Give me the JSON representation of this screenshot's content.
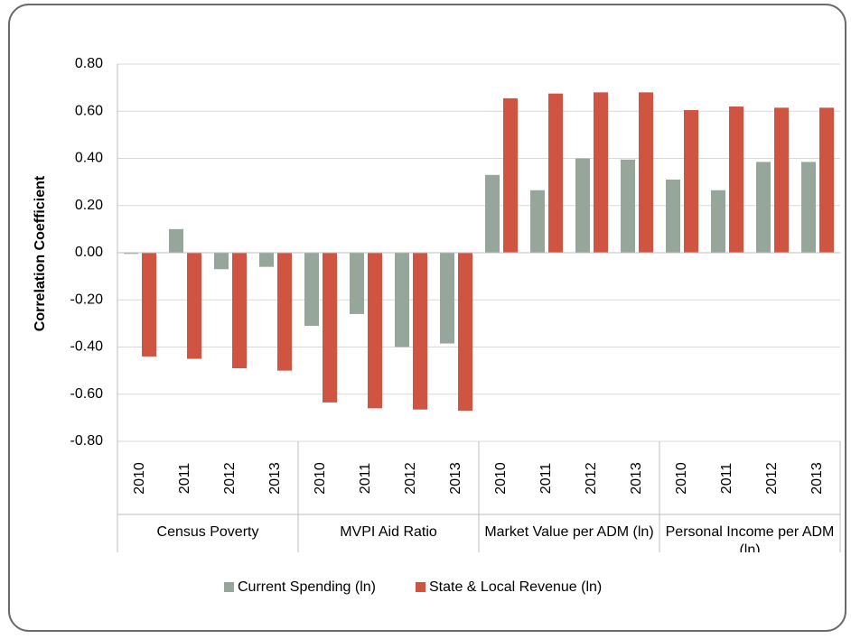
{
  "chart_data": {
    "type": "bar",
    "ylabel": "Correlation Coefficient",
    "categories": [
      "2010",
      "2011",
      "2012",
      "2013",
      "2010",
      "2011",
      "2012",
      "2013",
      "2010",
      "2011",
      "2012",
      "2013",
      "2010",
      "2011",
      "2012",
      "2013"
    ],
    "groups": [
      "Census Poverty",
      "MVPI Aid Ratio",
      "Market Value per ADM (ln)",
      "Personal Income per ADM (ln)"
    ],
    "series": [
      {
        "name": "Current Spending (ln)",
        "color": "#96a69b",
        "values": [
          -0.005,
          0.1,
          -0.07,
          -0.06,
          -0.31,
          -0.26,
          -0.4,
          -0.385,
          0.33,
          0.265,
          0.4,
          0.395,
          0.31,
          0.265,
          0.385,
          0.385
        ]
      },
      {
        "name": "State & Local Revenue (ln)",
        "color": "#d05442",
        "values": [
          -0.44,
          -0.45,
          -0.49,
          -0.5,
          -0.635,
          -0.66,
          -0.665,
          -0.67,
          0.655,
          0.675,
          0.68,
          0.68,
          0.605,
          0.62,
          0.615,
          0.615
        ]
      }
    ],
    "ylim": [
      -0.8,
      0.8
    ],
    "yticks": [
      {
        "value": 0.8,
        "label": "0.80"
      },
      {
        "value": 0.6,
        "label": "0.60"
      },
      {
        "value": 0.4,
        "label": "0.40"
      },
      {
        "value": 0.2,
        "label": "0.20"
      },
      {
        "value": 0,
        "label": "0.00"
      },
      {
        "value": -0.2,
        "label": "-0.20"
      },
      {
        "value": -0.4,
        "label": "-0.40"
      },
      {
        "value": -0.6,
        "label": "-0.60"
      },
      {
        "value": -0.8,
        "label": "-0.80"
      }
    ],
    "grid": true,
    "legend": "bottom"
  }
}
